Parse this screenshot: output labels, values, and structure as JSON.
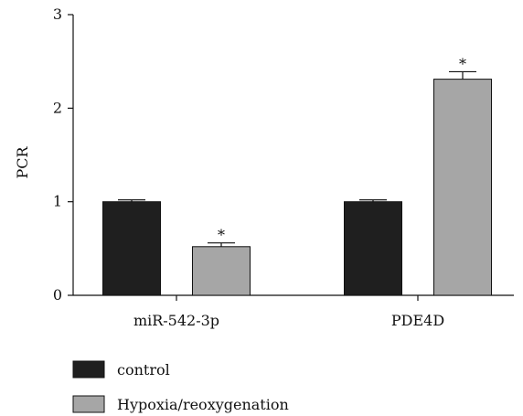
{
  "chart_data": {
    "type": "bar",
    "title": "",
    "xlabel": "",
    "ylabel": "PCR",
    "ylim": [
      0,
      3
    ],
    "yticks": [
      0,
      1,
      2,
      3
    ],
    "grid": false,
    "legend_position": "bottom-left",
    "categories": [
      "miR-542-3p",
      "PDE4D"
    ],
    "series": [
      {
        "name": "control",
        "color": "#1f1f1f",
        "values": [
          1.0,
          1.0
        ],
        "errors": [
          0.02,
          0.02
        ],
        "significance": [
          "",
          ""
        ]
      },
      {
        "name": "Hypoxia/reoxygenation",
        "color": "#a6a6a6",
        "values": [
          0.52,
          2.31
        ],
        "errors": [
          0.04,
          0.08
        ],
        "significance": [
          "*",
          "*"
        ]
      }
    ]
  }
}
